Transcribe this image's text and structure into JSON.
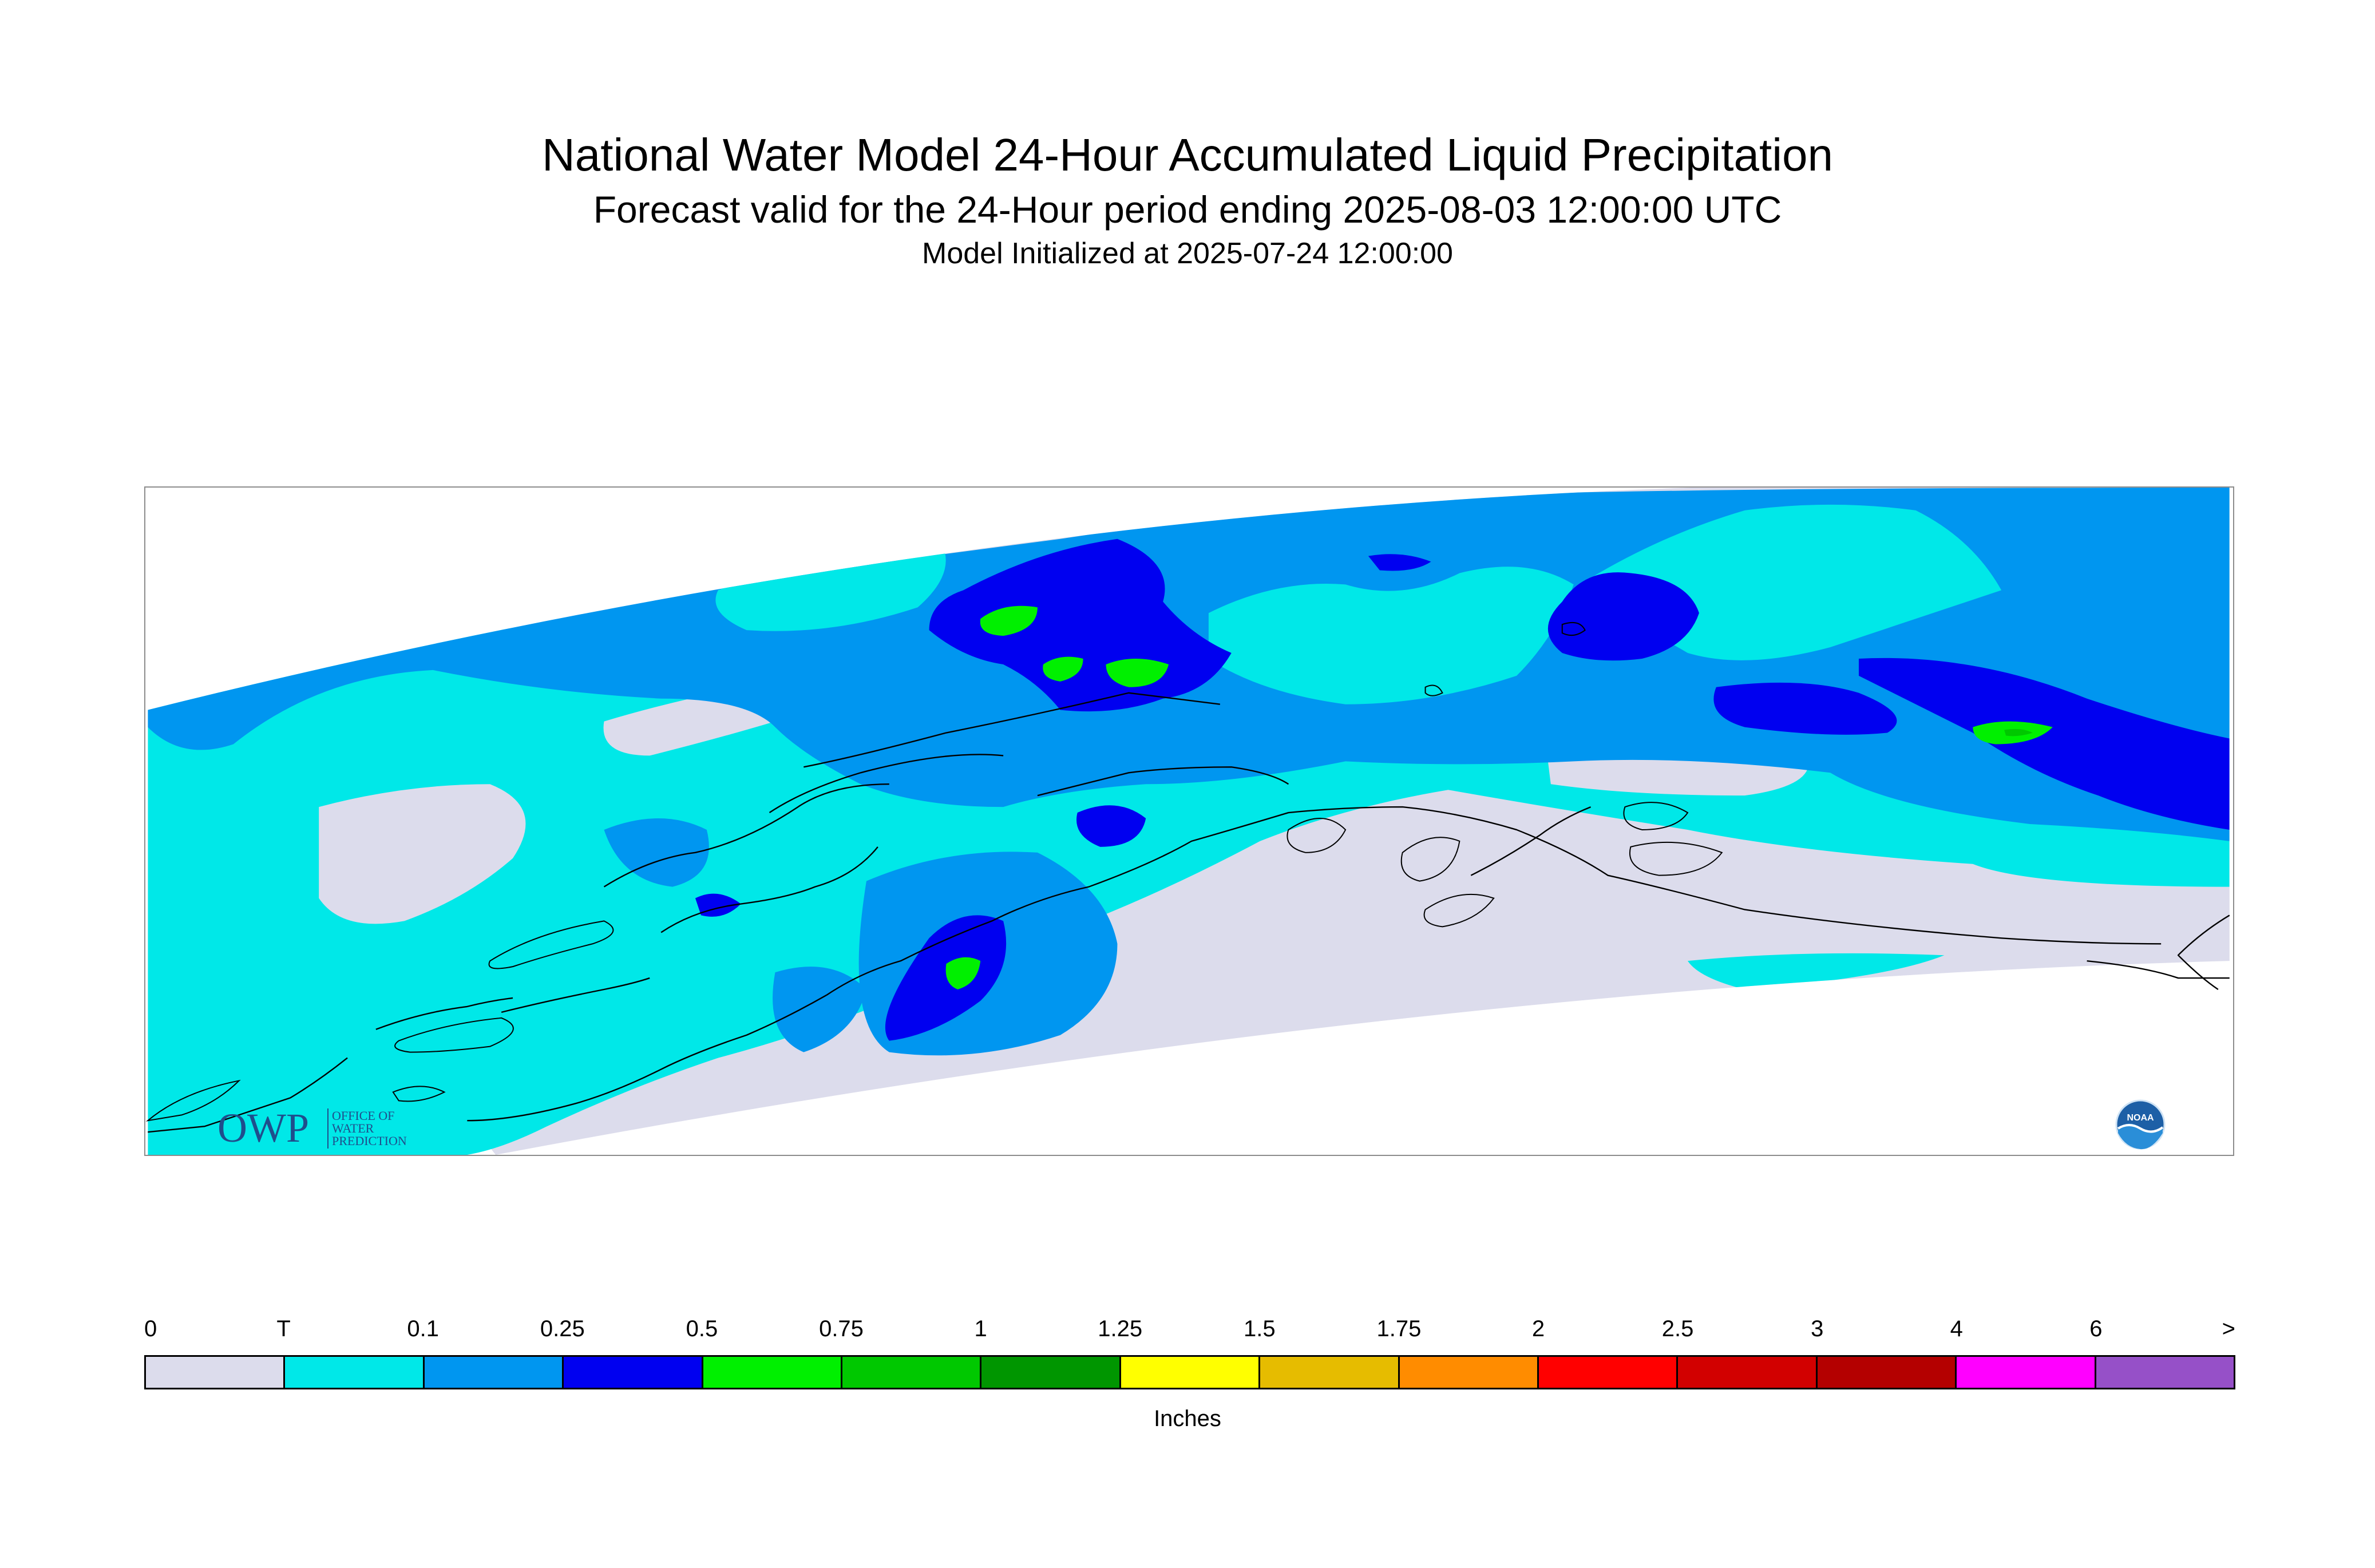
{
  "title": "National Water Model 24-Hour Accumulated Liquid Precipitation",
  "subtitle": "Forecast valid for the 24-Hour period ending 2025-08-03 12:00:00 UTC",
  "init_line": "Model Initialized at 2025-07-24 12:00:00",
  "map": {
    "region": "Alaska",
    "background_color": "#ffffff",
    "coastline_color": "#000000"
  },
  "logos": {
    "owp": {
      "main": "OWP",
      "line1": "OFFICE OF",
      "line2": "WATER",
      "line3": "PREDICTION"
    },
    "noaa": {
      "text": "NOAA"
    }
  },
  "legend": {
    "ticks": [
      "0",
      "T",
      "0.1",
      "0.25",
      "0.5",
      "0.75",
      "1",
      "1.25",
      "1.5",
      "1.75",
      "2",
      "2.5",
      "3",
      "4",
      "6",
      ">"
    ],
    "colors": [
      "#dcdcec",
      "#00e8e8",
      "#0096f0",
      "#0000f0",
      "#00f000",
      "#00c800",
      "#009600",
      "#ffff00",
      "#e6bc00",
      "#ff8c00",
      "#ff0000",
      "#d20000",
      "#b40000",
      "#ff00ff",
      "#9650c8"
    ],
    "units": "Inches"
  }
}
